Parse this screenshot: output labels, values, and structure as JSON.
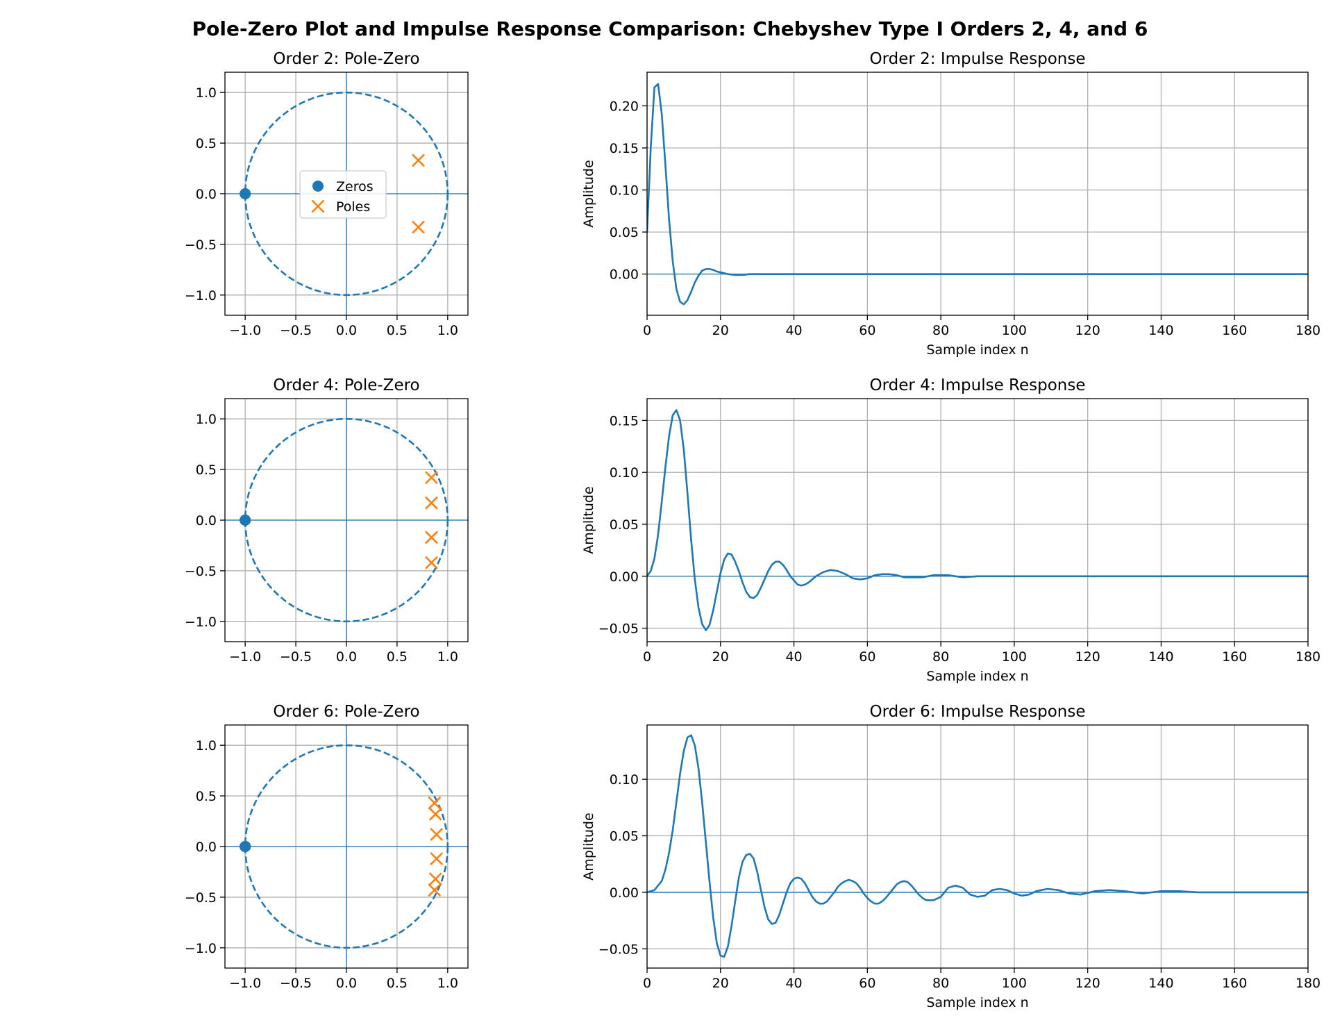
{
  "figure": {
    "suptitle": "Pole-Zero Plot and Impulse Response Comparison: Chebyshev Type I Orders 2, 4, and 6"
  },
  "chart_data": [
    {
      "type": "scatter",
      "title": "Order 2: Pole-Zero",
      "xlabel": "",
      "ylabel": "",
      "xlim": [
        -1.2,
        1.2
      ],
      "ylim": [
        -1.2,
        1.2
      ],
      "xticks": [
        "−1.0",
        "−0.5",
        "0.0",
        "0.5",
        "1.0"
      ],
      "yticks": [
        "−1.0",
        "−0.5",
        "0.0",
        "0.5",
        "1.0"
      ],
      "grid": true,
      "unit_circle": true,
      "legend": {
        "show": true,
        "placement": "center"
      },
      "series": [
        {
          "name": "Zeros",
          "marker": "circle",
          "color": "#1f77b4",
          "points": [
            [
              -1.0,
              0.0
            ],
            [
              -1.0,
              0.0
            ]
          ]
        },
        {
          "name": "Poles",
          "marker": "x",
          "color": "#ff7f0e",
          "points": [
            [
              0.71,
              0.33
            ],
            [
              0.71,
              -0.33
            ]
          ]
        }
      ]
    },
    {
      "type": "line",
      "title": "Order 2: Impulse Response",
      "xlabel": "Sample index n",
      "ylabel": "Amplitude",
      "xlim": [
        0,
        180
      ],
      "ylim": [
        -0.049,
        0.24
      ],
      "xticks": [
        "0",
        "20",
        "40",
        "60",
        "80",
        "100",
        "120",
        "140",
        "160",
        "180"
      ],
      "yticks": [
        "0.00",
        "0.05",
        "0.10",
        "0.15",
        "0.20"
      ],
      "grid": true,
      "series": [
        {
          "color": "#1f77b4",
          "x": [
            0,
            1,
            2,
            3,
            4,
            5,
            6,
            7,
            8,
            9,
            10,
            11,
            12,
            13,
            14,
            15,
            16,
            17,
            18,
            19,
            20,
            22,
            24,
            26,
            28,
            30,
            35,
            40,
            60,
            100,
            140,
            180
          ],
          "y": [
            0.05,
            0.15,
            0.222,
            0.226,
            0.19,
            0.13,
            0.065,
            0.015,
            -0.018,
            -0.033,
            -0.036,
            -0.031,
            -0.021,
            -0.01,
            -0.002,
            0.004,
            0.006,
            0.006,
            0.005,
            0.003,
            0.002,
            0.0,
            -0.001,
            -0.001,
            0.0,
            0.0,
            0.0,
            0.0,
            0.0,
            0.0,
            0.0,
            0.0
          ]
        }
      ]
    },
    {
      "type": "scatter",
      "title": "Order 4: Pole-Zero",
      "xlabel": "",
      "ylabel": "",
      "xlim": [
        -1.2,
        1.2
      ],
      "ylim": [
        -1.2,
        1.2
      ],
      "xticks": [
        "−1.0",
        "−0.5",
        "0.0",
        "0.5",
        "1.0"
      ],
      "yticks": [
        "−1.0",
        "−0.5",
        "0.0",
        "0.5",
        "1.0"
      ],
      "grid": true,
      "unit_circle": true,
      "legend": {
        "show": false
      },
      "series": [
        {
          "name": "Zeros",
          "marker": "circle",
          "color": "#1f77b4",
          "points": [
            [
              -1.0,
              0.0
            ],
            [
              -1.0,
              0.0
            ],
            [
              -1.0,
              0.0
            ],
            [
              -1.0,
              0.0
            ]
          ]
        },
        {
          "name": "Poles",
          "marker": "x",
          "color": "#ff7f0e",
          "points": [
            [
              0.84,
              0.42
            ],
            [
              0.84,
              0.17
            ],
            [
              0.84,
              -0.17
            ],
            [
              0.84,
              -0.42
            ]
          ]
        }
      ]
    },
    {
      "type": "line",
      "title": "Order 4: Impulse Response",
      "xlabel": "Sample index n",
      "ylabel": "Amplitude",
      "xlim": [
        0,
        180
      ],
      "ylim": [
        -0.063,
        0.171
      ],
      "xticks": [
        "0",
        "20",
        "40",
        "60",
        "80",
        "100",
        "120",
        "140",
        "160",
        "180"
      ],
      "yticks": [
        "−0.05",
        "0.00",
        "0.05",
        "0.10",
        "0.15"
      ],
      "grid": true,
      "series": [
        {
          "color": "#1f77b4",
          "x": [
            0,
            1,
            2,
            3,
            4,
            5,
            6,
            7,
            8,
            9,
            10,
            11,
            12,
            13,
            14,
            15,
            16,
            17,
            18,
            19,
            20,
            21,
            22,
            23,
            24,
            25,
            26,
            27,
            28,
            29,
            30,
            31,
            32,
            33,
            34,
            35,
            36,
            37,
            38,
            39,
            40,
            41,
            42,
            43,
            44,
            46,
            48,
            50,
            52,
            54,
            56,
            58,
            60,
            62,
            64,
            66,
            68,
            70,
            72,
            75,
            78,
            82,
            86,
            90,
            95,
            100,
            110,
            120,
            140,
            160,
            180
          ],
          "y": [
            0.0,
            0.005,
            0.017,
            0.04,
            0.072,
            0.105,
            0.135,
            0.155,
            0.16,
            0.15,
            0.122,
            0.08,
            0.035,
            -0.003,
            -0.03,
            -0.046,
            -0.052,
            -0.047,
            -0.033,
            -0.015,
            0.003,
            0.016,
            0.022,
            0.021,
            0.014,
            0.005,
            -0.006,
            -0.015,
            -0.02,
            -0.021,
            -0.018,
            -0.011,
            -0.003,
            0.005,
            0.011,
            0.014,
            0.014,
            0.011,
            0.006,
            0.0,
            -0.004,
            -0.008,
            -0.009,
            -0.008,
            -0.006,
            0.0,
            0.004,
            0.006,
            0.005,
            0.002,
            -0.002,
            -0.003,
            -0.002,
            0.001,
            0.002,
            0.002,
            0.001,
            -0.001,
            -0.001,
            -0.001,
            0.001,
            0.001,
            -0.001,
            0.0,
            0.0,
            0.0,
            0.0,
            0.0,
            0.0,
            0.0,
            0.0
          ]
        }
      ]
    },
    {
      "type": "scatter",
      "title": "Order 6: Pole-Zero",
      "xlabel": "",
      "ylabel": "",
      "xlim": [
        -1.2,
        1.2
      ],
      "ylim": [
        -1.2,
        1.2
      ],
      "xticks": [
        "−1.0",
        "−0.5",
        "0.0",
        "0.5",
        "1.0"
      ],
      "yticks": [
        "−1.0",
        "−0.5",
        "0.0",
        "0.5",
        "1.0"
      ],
      "grid": true,
      "unit_circle": true,
      "legend": {
        "show": false
      },
      "series": [
        {
          "name": "Zeros",
          "marker": "circle",
          "color": "#1f77b4",
          "points": [
            [
              -1.0,
              0.0
            ],
            [
              -1.0,
              0.0
            ],
            [
              -1.0,
              0.0
            ],
            [
              -1.0,
              0.0
            ],
            [
              -1.0,
              0.0
            ],
            [
              -1.0,
              0.0
            ]
          ]
        },
        {
          "name": "Poles",
          "marker": "x",
          "color": "#ff7f0e",
          "points": [
            [
              0.87,
              0.43
            ],
            [
              0.88,
              0.32
            ],
            [
              0.89,
              0.12
            ],
            [
              0.89,
              -0.12
            ],
            [
              0.88,
              -0.32
            ],
            [
              0.87,
              -0.43
            ]
          ]
        }
      ]
    },
    {
      "type": "line",
      "title": "Order 6: Impulse Response",
      "xlabel": "Sample index n",
      "ylabel": "Amplitude",
      "xlim": [
        0,
        180
      ],
      "ylim": [
        -0.067,
        0.148
      ],
      "xticks": [
        "0",
        "20",
        "40",
        "60",
        "80",
        "100",
        "120",
        "140",
        "160",
        "180"
      ],
      "yticks": [
        "−0.05",
        "0.00",
        "0.05",
        "0.10"
      ],
      "grid": true,
      "series": [
        {
          "color": "#1f77b4",
          "x": [
            0,
            2,
            4,
            5,
            6,
            7,
            8,
            9,
            10,
            11,
            12,
            13,
            14,
            15,
            16,
            17,
            18,
            19,
            20,
            21,
            22,
            23,
            24,
            25,
            26,
            27,
            28,
            29,
            30,
            31,
            32,
            33,
            34,
            35,
            36,
            37,
            38,
            39,
            40,
            41,
            42,
            43,
            44,
            45,
            46,
            47,
            48,
            49,
            50,
            51,
            52,
            53,
            54,
            55,
            56,
            57,
            58,
            59,
            60,
            61,
            62,
            63,
            64,
            65,
            66,
            67,
            68,
            69,
            70,
            71,
            72,
            73,
            74,
            75,
            76,
            78,
            80,
            82,
            84,
            86,
            88,
            90,
            92,
            94,
            96,
            98,
            100,
            102,
            104,
            106,
            109,
            112,
            115,
            118,
            122,
            126,
            130,
            135,
            140,
            145,
            150,
            155,
            160,
            165,
            170,
            175,
            180
          ],
          "y": [
            0.0,
            0.002,
            0.01,
            0.02,
            0.035,
            0.055,
            0.08,
            0.105,
            0.125,
            0.137,
            0.139,
            0.13,
            0.11,
            0.08,
            0.045,
            0.01,
            -0.022,
            -0.045,
            -0.056,
            -0.057,
            -0.048,
            -0.03,
            -0.008,
            0.013,
            0.027,
            0.033,
            0.034,
            0.03,
            0.018,
            0.002,
            -0.013,
            -0.024,
            -0.028,
            -0.027,
            -0.02,
            -0.01,
            0.0,
            0.008,
            0.012,
            0.013,
            0.012,
            0.008,
            0.002,
            -0.004,
            -0.008,
            -0.01,
            -0.01,
            -0.008,
            -0.004,
            0.0,
            0.005,
            0.008,
            0.01,
            0.011,
            0.01,
            0.008,
            0.004,
            -0.001,
            -0.005,
            -0.008,
            -0.01,
            -0.01,
            -0.008,
            -0.005,
            -0.001,
            0.003,
            0.007,
            0.009,
            0.01,
            0.009,
            0.006,
            0.002,
            -0.002,
            -0.005,
            -0.007,
            -0.007,
            -0.004,
            0.004,
            0.006,
            0.004,
            -0.002,
            -0.004,
            -0.003,
            0.002,
            0.003,
            0.002,
            -0.001,
            -0.003,
            -0.002,
            0.001,
            0.003,
            0.002,
            -0.001,
            -0.002,
            0.001,
            0.002,
            0.001,
            -0.001,
            0.001,
            0.001,
            0.0,
            0.0,
            0.0,
            0.0,
            0.0,
            0.0,
            0.0
          ]
        }
      ]
    }
  ]
}
